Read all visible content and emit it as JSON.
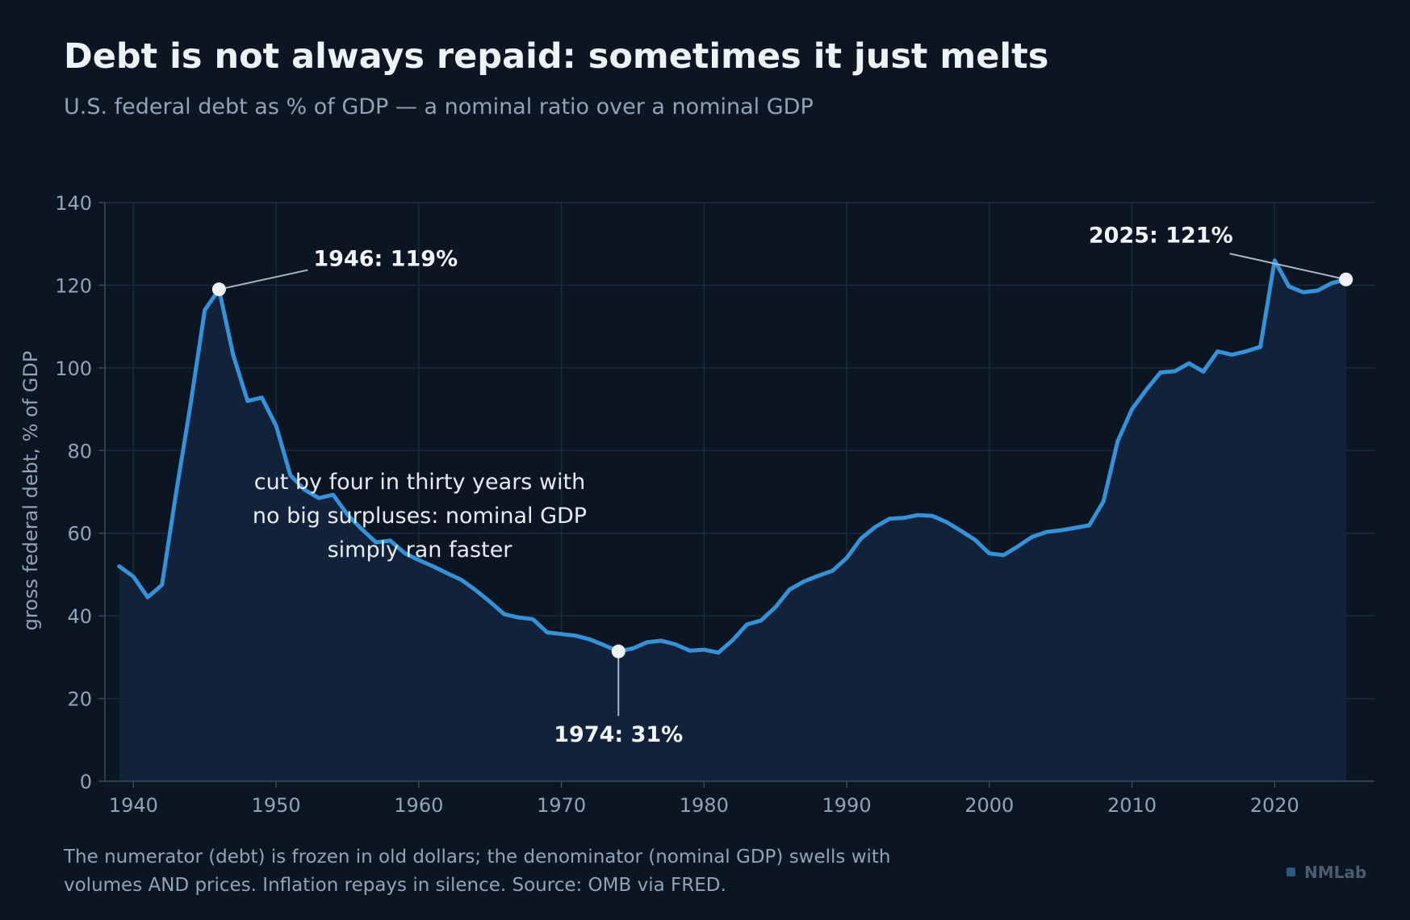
{
  "chart_data": {
    "type": "area",
    "title": "Debt is not always repaid: sometimes it just melts",
    "subtitle": "U.S. federal debt as % of GDP — a nominal ratio over a nominal GDP",
    "xlabel": "",
    "ylabel": "gross federal debt, % of GDP",
    "xlim": [
      1938,
      2027
    ],
    "ylim": [
      0,
      140
    ],
    "x_ticks": [
      1940,
      1950,
      1960,
      1970,
      1980,
      1990,
      2000,
      2010,
      2020
    ],
    "y_ticks": [
      0,
      20,
      40,
      60,
      80,
      100,
      120,
      140
    ],
    "grid": true,
    "series": [
      {
        "color": "#3592d8",
        "fill": "#11223a",
        "points": [
          [
            1939,
            52
          ],
          [
            1940,
            49.5
          ],
          [
            1941,
            44.5
          ],
          [
            1942,
            47.5
          ],
          [
            1943,
            70
          ],
          [
            1944,
            91
          ],
          [
            1945,
            114
          ],
          [
            1946,
            119
          ],
          [
            1947,
            103
          ],
          [
            1948,
            92
          ],
          [
            1949,
            92.8
          ],
          [
            1950,
            86
          ],
          [
            1951,
            74
          ],
          [
            1952,
            70.5
          ],
          [
            1953,
            68.5
          ],
          [
            1954,
            69.3
          ],
          [
            1955,
            64.5
          ],
          [
            1956,
            61
          ],
          [
            1957,
            57.8
          ],
          [
            1958,
            58.2
          ],
          [
            1959,
            55.2
          ],
          [
            1960,
            53.5
          ],
          [
            1961,
            52
          ],
          [
            1962,
            50.3
          ],
          [
            1963,
            48.7
          ],
          [
            1964,
            46.2
          ],
          [
            1965,
            43.4
          ],
          [
            1966,
            40.4
          ],
          [
            1967,
            39.6
          ],
          [
            1968,
            39.2
          ],
          [
            1969,
            36
          ],
          [
            1970,
            35.6
          ],
          [
            1971,
            35.2
          ],
          [
            1972,
            34.3
          ],
          [
            1973,
            32.9
          ],
          [
            1974,
            31.4
          ],
          [
            1975,
            32.1
          ],
          [
            1976,
            33.6
          ],
          [
            1977,
            34
          ],
          [
            1978,
            33.1
          ],
          [
            1979,
            31.6
          ],
          [
            1980,
            31.8
          ],
          [
            1981,
            31.1
          ],
          [
            1982,
            34.1
          ],
          [
            1983,
            37.9
          ],
          [
            1984,
            38.9
          ],
          [
            1985,
            42.1
          ],
          [
            1986,
            46.4
          ],
          [
            1987,
            48.3
          ],
          [
            1988,
            49.7
          ],
          [
            1989,
            50.9
          ],
          [
            1990,
            54
          ],
          [
            1991,
            58.7
          ],
          [
            1992,
            61.5
          ],
          [
            1993,
            63.5
          ],
          [
            1994,
            63.7
          ],
          [
            1995,
            64.4
          ],
          [
            1996,
            64.2
          ],
          [
            1997,
            62.7
          ],
          [
            1998,
            60.6
          ],
          [
            1999,
            58.4
          ],
          [
            2000,
            55.1
          ],
          [
            2001,
            54.7
          ],
          [
            2002,
            56.8
          ],
          [
            2003,
            59.1
          ],
          [
            2004,
            60.3
          ],
          [
            2005,
            60.7
          ],
          [
            2006,
            61.3
          ],
          [
            2007,
            61.9
          ],
          [
            2008,
            67.7
          ],
          [
            2009,
            82.3
          ],
          [
            2010,
            90
          ],
          [
            2011,
            94.7
          ],
          [
            2012,
            98.9
          ],
          [
            2013,
            99.2
          ],
          [
            2014,
            101.1
          ],
          [
            2015,
            99.1
          ],
          [
            2016,
            104
          ],
          [
            2017,
            103.2
          ],
          [
            2018,
            104
          ],
          [
            2019,
            105.1
          ],
          [
            2020,
            126
          ],
          [
            2021,
            119.7
          ],
          [
            2022,
            118.3
          ],
          [
            2023,
            118.7
          ],
          [
            2024,
            120.5
          ],
          [
            2025,
            121.4
          ]
        ]
      }
    ],
    "annotations": [
      {
        "x": 1946,
        "y": 119,
        "text": "1946: 119%"
      },
      {
        "x": 1974,
        "y": 31.4,
        "text": "1974: 31%"
      },
      {
        "x": 2025,
        "y": 121.4,
        "text": "2025: 121%"
      }
    ],
    "note_lines": [
      "cut by four in thirty years with",
      "no big surpluses: nominal GDP",
      "simply ran faster"
    ]
  },
  "footnote_lines": [
    "The numerator (debt) is frozen in old dollars; the denominator (nominal GDP) swells with",
    "volumes AND prices. Inflation repays in silence. Source: OMB via FRED."
  ],
  "brand": "NMLab",
  "colors": {
    "background": "#0c1622",
    "line": "#3592d8",
    "area": "#11223a",
    "grid": "#1a2a3c",
    "text_muted": "#8fa3ba",
    "text_bright": "#eef3f8",
    "brand_square": "#2a5a80"
  }
}
